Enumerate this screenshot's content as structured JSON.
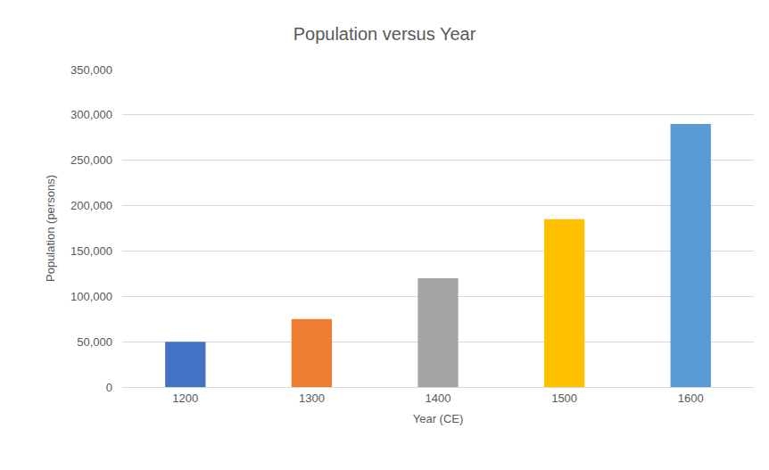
{
  "chart_data": {
    "type": "bar",
    "title": "Population versus Year",
    "x_label": "Year (CE)",
    "y_label": "Population (persons)",
    "categories": [
      "1200",
      "1300",
      "1400",
      "1500",
      "1600"
    ],
    "values": [
      50000,
      75000,
      120000,
      185000,
      290000
    ],
    "colors": [
      "#4472c4",
      "#ed7d31",
      "#a5a5a5",
      "#ffc000",
      "#5b9bd5"
    ],
    "ylim": [
      0,
      350000
    ],
    "yticks": [
      0,
      {
        "value": 50000,
        "label": "50,000"
      },
      {
        "value": 100000,
        "label": "100,000"
      },
      {
        "value": 150000,
        "label": "150,000"
      },
      {
        "value": 200000,
        "label": "200,000"
      },
      {
        "value": 250000,
        "label": "250,000"
      },
      {
        "value": 300000,
        "label": "300,000"
      },
      {
        "value": 350000,
        "label": "350,000"
      }
    ],
    "grid": true
  }
}
